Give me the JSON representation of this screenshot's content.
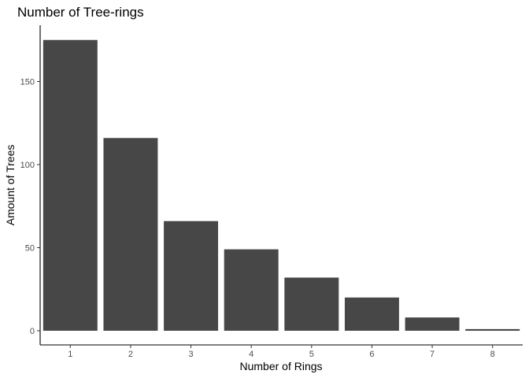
{
  "chart_data": {
    "type": "bar",
    "title": "Number of Tree-rings",
    "xlabel": "Number of Rings",
    "ylabel": "Amount of Trees",
    "categories": [
      "1",
      "2",
      "3",
      "4",
      "5",
      "6",
      "7",
      "8"
    ],
    "values": [
      175,
      116,
      66,
      49,
      32,
      20,
      8,
      1
    ],
    "yticks": [
      0,
      50,
      100,
      150
    ],
    "ylim": [
      0,
      183
    ],
    "bar_color": "#474747",
    "grid": false,
    "legend": "none"
  }
}
